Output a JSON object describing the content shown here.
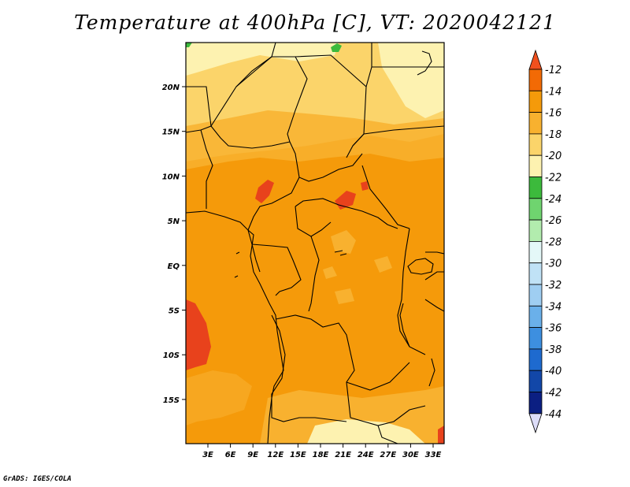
{
  "title": "Temperature at 400hPa [C], VT: 2020042121",
  "credit": "GrADS: IGES/COLA",
  "map": {
    "lat_ticks": [
      "20N",
      "15N",
      "10N",
      "5N",
      "EQ",
      "5S",
      "10S",
      "15S"
    ],
    "lon_ticks": [
      "3E",
      "6E",
      "9E",
      "12E",
      "15E",
      "18E",
      "21E",
      "24E",
      "27E",
      "30E",
      "33E"
    ]
  },
  "colorbar": {
    "levels": [
      "-12",
      "-14",
      "-16",
      "-18",
      "-20",
      "-22",
      "-24",
      "-26",
      "-28",
      "-30",
      "-32",
      "-34",
      "-36",
      "-38",
      "-40",
      "-42",
      "-44"
    ],
    "colors": [
      "#e8421c",
      "#f26a05",
      "#f59a0a",
      "#f8b12f",
      "#fbd46a",
      "#fdf2b0",
      "#3cba3c",
      "#6fd46f",
      "#b2ecae",
      "#e4f8f8",
      "#c0e2f6",
      "#9fcef2",
      "#6ab0ea",
      "#3d8fe0",
      "#1e6acf",
      "#1247a8",
      "#0b1f82"
    ],
    "top_color": "#f0501e",
    "bottom_color": "#dcdcf8",
    "colors_meaning": "warmest to coldest band fills"
  },
  "field": {
    "dominant": "#f59a0a",
    "north": "#fbd46a",
    "pale": "#fdf2b0",
    "mid_light": "#f8b12f",
    "warm": "#e8421c",
    "green": "#3cba3c"
  }
}
